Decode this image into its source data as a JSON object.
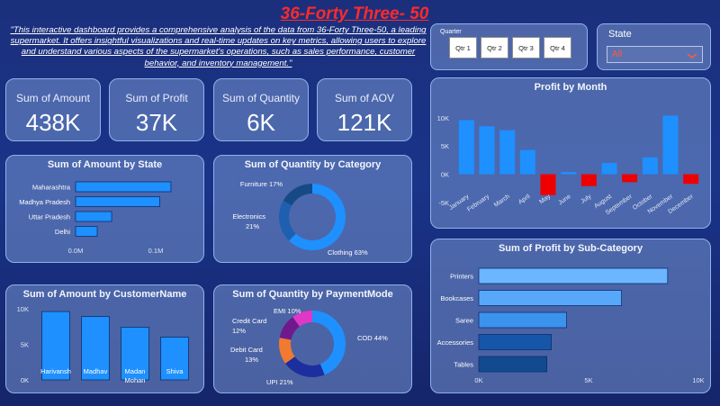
{
  "header": {
    "title": "36-Forty Three- 50",
    "description": "\"This interactive dashboard provides a comprehensive analysis of the data from 36-Forty Three-50, a leading supermarket. It offers insightful visualizations and real-time updates on key metrics, allowing users to explore and understand various aspects of the supermarket's operations, such as sales performance, customer behavior, and inventory management.\""
  },
  "quarter_slicer": {
    "label": "Quarter",
    "buttons": [
      "Qtr 1",
      "Qtr 2",
      "Qtr 3",
      "Qtr 4"
    ]
  },
  "state_slicer": {
    "label": "State",
    "value": "All"
  },
  "kpis": [
    {
      "label": "Sum of Amount",
      "value": "438K"
    },
    {
      "label": "Sum of Profit",
      "value": "37K"
    },
    {
      "label": "Sum of Quantity",
      "value": "6K"
    },
    {
      "label": "Sum of AOV",
      "value": "121K"
    }
  ],
  "colors": {
    "primary": "#1e90ff",
    "negative": "#ee0000",
    "dark_navy": "#1a3a8a",
    "ticks": "#dfe7f7"
  },
  "chart_data": [
    {
      "id": "amount_by_state",
      "type": "bar",
      "orientation": "horizontal",
      "title": "Sum of Amount by State",
      "categories": [
        "Maharashtra",
        "Madhya Pradesh",
        "Uttar Pradesh",
        "Delhi"
      ],
      "values": [
        0.119,
        0.105,
        0.045,
        0.027
      ],
      "xlim": [
        0,
        0.2
      ],
      "xticks": [
        0,
        0.1
      ],
      "xtick_labels": [
        "0.0M",
        "0.1M"
      ]
    },
    {
      "id": "quantity_by_category",
      "type": "pie",
      "donut": true,
      "title": "Sum of Quantity by Category",
      "labels": [
        "Clothing",
        "Electronics",
        "Furniture"
      ],
      "values": [
        63,
        21,
        17
      ],
      "label_text": [
        "Clothing 63%",
        "Electronics",
        "21%",
        "Furniture 17%"
      ],
      "colors": [
        "#1e90ff",
        "#1e5fb0",
        "#154a86"
      ]
    },
    {
      "id": "profit_by_month",
      "type": "bar",
      "title": "Profit by Month",
      "categories": [
        "January",
        "February",
        "March",
        "April",
        "May",
        "June",
        "July",
        "August",
        "September",
        "October",
        "November",
        "December"
      ],
      "values": [
        9600,
        8500,
        7800,
        4300,
        -3700,
        400,
        -2100,
        2000,
        -1400,
        3000,
        10400,
        -1700
      ],
      "ylim": [
        -5500,
        13500
      ],
      "yticks": [
        -5000,
        0,
        5000,
        10000
      ],
      "ytick_labels": [
        "-5K",
        "0K",
        "5K",
        "10K"
      ]
    },
    {
      "id": "amount_by_customer",
      "type": "bar",
      "title": "Sum of Amount by CustomerName",
      "categories": [
        "Harivansh",
        "Madhav",
        "Madan Mohan",
        "Shiva"
      ],
      "values": [
        9600,
        8900,
        7400,
        6000
      ],
      "ylim": [
        0,
        11000
      ],
      "yticks": [
        0,
        5000,
        10000
      ],
      "ytick_labels": [
        "0K",
        "5K",
        "10K"
      ]
    },
    {
      "id": "quantity_by_paymentmode",
      "type": "pie",
      "donut": true,
      "title": "Sum of Quantity by PaymentMode",
      "labels": [
        "COD",
        "UPI",
        "Debit Card",
        "Credit Card",
        "EMI"
      ],
      "values": [
        44,
        21,
        13,
        12,
        10
      ],
      "label_text": [
        "COD 44%",
        "UPI 21%",
        "Debit Card",
        "13%",
        "Credit Card",
        "12%",
        "EMI 10%"
      ],
      "colors": [
        "#1e90ff",
        "#1d2f9e",
        "#ef7a30",
        "#6f1a8c",
        "#df38c6"
      ]
    },
    {
      "id": "profit_by_subcategory",
      "type": "bar",
      "orientation": "horizontal",
      "title": "Sum of Profit by Sub-Category",
      "categories": [
        "Printers",
        "Bookcases",
        "Saree",
        "Accessories",
        "Tables"
      ],
      "values": [
        8600,
        6500,
        4000,
        3300,
        3100
      ],
      "xlim": [
        0,
        10000
      ],
      "xticks": [
        0,
        5000,
        10000
      ],
      "xtick_labels": [
        "0K",
        "5K",
        "10K"
      ],
      "colors": [
        "#6bb6ff",
        "#57a8f8",
        "#3c93ee",
        "#1656a8",
        "#124a8f"
      ]
    }
  ]
}
